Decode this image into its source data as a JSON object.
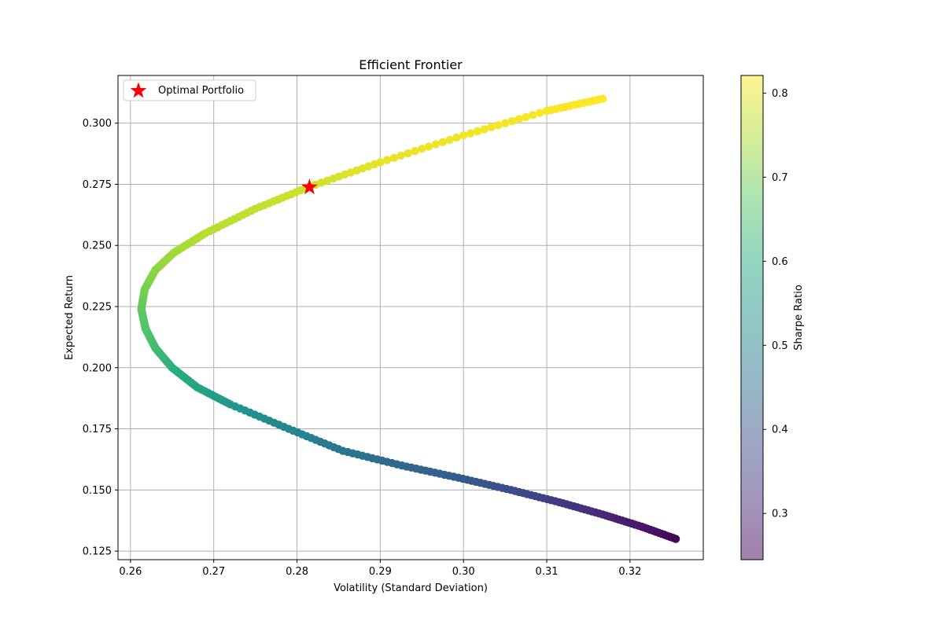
{
  "chart_data": {
    "type": "scatter",
    "title": "Efficient Frontier",
    "xlabel": "Volatility (Standard Deviation)",
    "ylabel": "Expected Return",
    "xlim": [
      0.2585,
      0.3288
    ],
    "ylim": [
      0.1215,
      0.3195
    ],
    "xticks": [
      0.26,
      0.27,
      0.28,
      0.29,
      0.3,
      0.31,
      0.32
    ],
    "xtick_labels": [
      "0.26",
      "0.27",
      "0.28",
      "0.29",
      "0.30",
      "0.31",
      "0.32"
    ],
    "yticks": [
      0.125,
      0.15,
      0.175,
      0.2,
      0.225,
      0.25,
      0.275,
      0.3
    ],
    "ytick_labels": [
      "0.125",
      "0.150",
      "0.175",
      "0.200",
      "0.225",
      "0.250",
      "0.275",
      "0.300"
    ],
    "grid": true,
    "colormap": "viridis",
    "frontier": {
      "min_variance_point": {
        "x": 0.2613,
        "y": 0.224
      },
      "return_range": [
        0.13,
        0.31
      ],
      "points": [
        {
          "x": 0.3255,
          "y": 0.13,
          "sharpe": 0.25
        },
        {
          "x": 0.3214,
          "y": 0.135,
          "sharpe": 0.28
        },
        {
          "x": 0.3167,
          "y": 0.14,
          "sharpe": 0.31
        },
        {
          "x": 0.3115,
          "y": 0.145,
          "sharpe": 0.34
        },
        {
          "x": 0.3057,
          "y": 0.15,
          "sharpe": 0.38
        },
        {
          "x": 0.2994,
          "y": 0.155,
          "sharpe": 0.41
        },
        {
          "x": 0.2926,
          "y": 0.16,
          "sharpe": 0.44
        },
        {
          "x": 0.2855,
          "y": 0.166,
          "sharpe": 0.47
        },
        {
          "x": 0.279,
          "y": 0.175,
          "sharpe": 0.51
        },
        {
          "x": 0.272,
          "y": 0.185,
          "sharpe": 0.55
        },
        {
          "x": 0.268,
          "y": 0.192,
          "sharpe": 0.58
        },
        {
          "x": 0.265,
          "y": 0.2,
          "sharpe": 0.61
        },
        {
          "x": 0.263,
          "y": 0.208,
          "sharpe": 0.64
        },
        {
          "x": 0.2618,
          "y": 0.216,
          "sharpe": 0.66
        },
        {
          "x": 0.2613,
          "y": 0.224,
          "sharpe": 0.68
        },
        {
          "x": 0.2617,
          "y": 0.232,
          "sharpe": 0.7
        },
        {
          "x": 0.263,
          "y": 0.24,
          "sharpe": 0.72
        },
        {
          "x": 0.2652,
          "y": 0.247,
          "sharpe": 0.74
        },
        {
          "x": 0.269,
          "y": 0.255,
          "sharpe": 0.76
        },
        {
          "x": 0.275,
          "y": 0.265,
          "sharpe": 0.77
        },
        {
          "x": 0.2815,
          "y": 0.274,
          "sharpe": 0.78
        },
        {
          "x": 0.29,
          "y": 0.284,
          "sharpe": 0.8
        },
        {
          "x": 0.3,
          "y": 0.295,
          "sharpe": 0.81
        },
        {
          "x": 0.31,
          "y": 0.305,
          "sharpe": 0.815
        },
        {
          "x": 0.3167,
          "y": 0.31,
          "sharpe": 0.82
        }
      ]
    },
    "optimal_portfolio": {
      "x": 0.2815,
      "y": 0.2738,
      "marker": "star",
      "color": "#ff0000"
    },
    "legend": {
      "position": "upper-left",
      "entries": [
        "Optimal Portfolio"
      ]
    },
    "colorbar": {
      "label": "Sharpe Ratio",
      "range": [
        0.245,
        0.821
      ],
      "ticks": [
        0.3,
        0.4,
        0.5,
        0.6,
        0.7,
        0.8
      ],
      "tick_labels": [
        "0.3",
        "0.4",
        "0.5",
        "0.6",
        "0.7",
        "0.8"
      ],
      "alpha": 0.5
    }
  }
}
